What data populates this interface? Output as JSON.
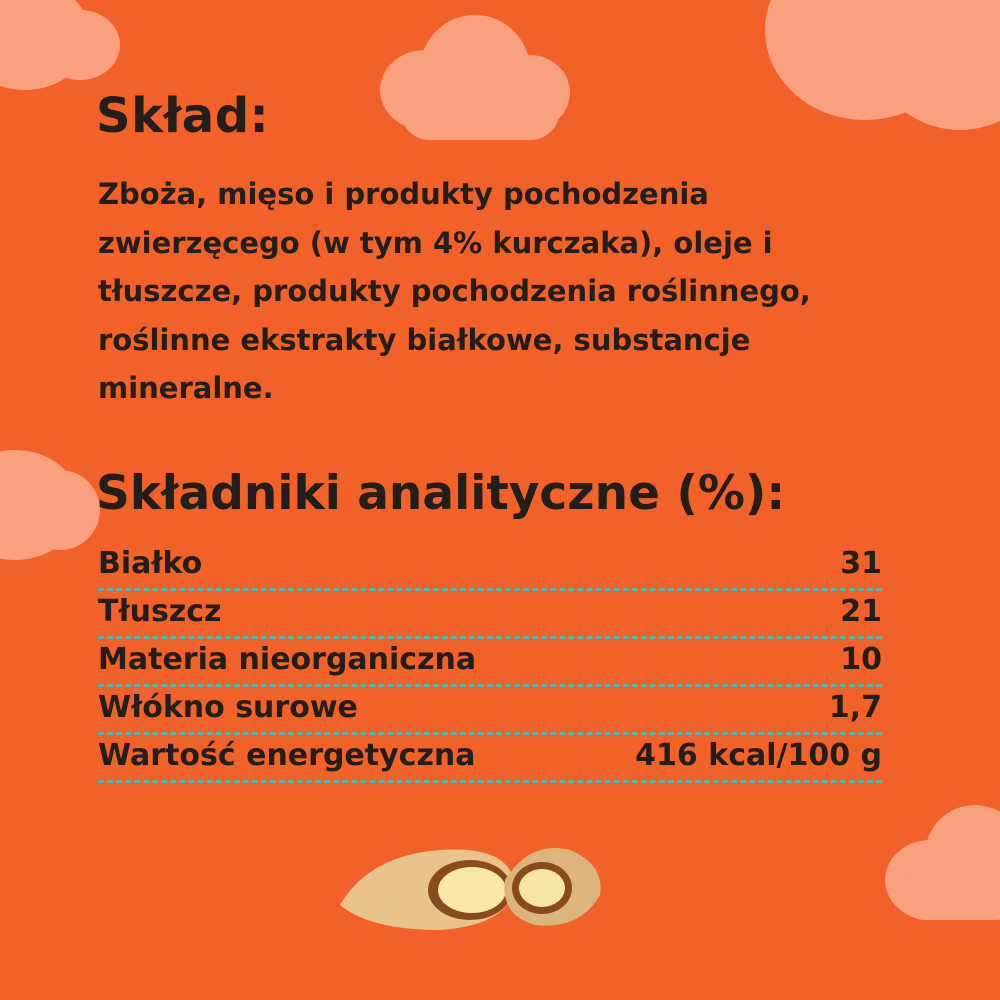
{
  "composition": {
    "title": "Skład:",
    "text": "Zboża, mięso i produkty pochodzenia zwierzęcego (w tym 4% kurczaka), oleje i tłuszcze, produkty pochodzenia roślinnego, roślinne ekstrakty białkowe, substancje mineralne."
  },
  "analytical": {
    "title": "Składniki analityczne (%):",
    "rows": [
      {
        "label": "Białko",
        "value": "31"
      },
      {
        "label": "Tłuszcz",
        "value": "21"
      },
      {
        "label": "Materia nieorganiczna",
        "value": "10"
      },
      {
        "label": "Włókno surowe",
        "value": "1,7"
      },
      {
        "label": "Wartość energetyczna",
        "value": "416 kcal/100 g"
      }
    ]
  },
  "colors": {
    "background": "#F26128",
    "cloud": "#F9A07E",
    "dashes": "#4fb5b0",
    "text": "#221e1b"
  }
}
